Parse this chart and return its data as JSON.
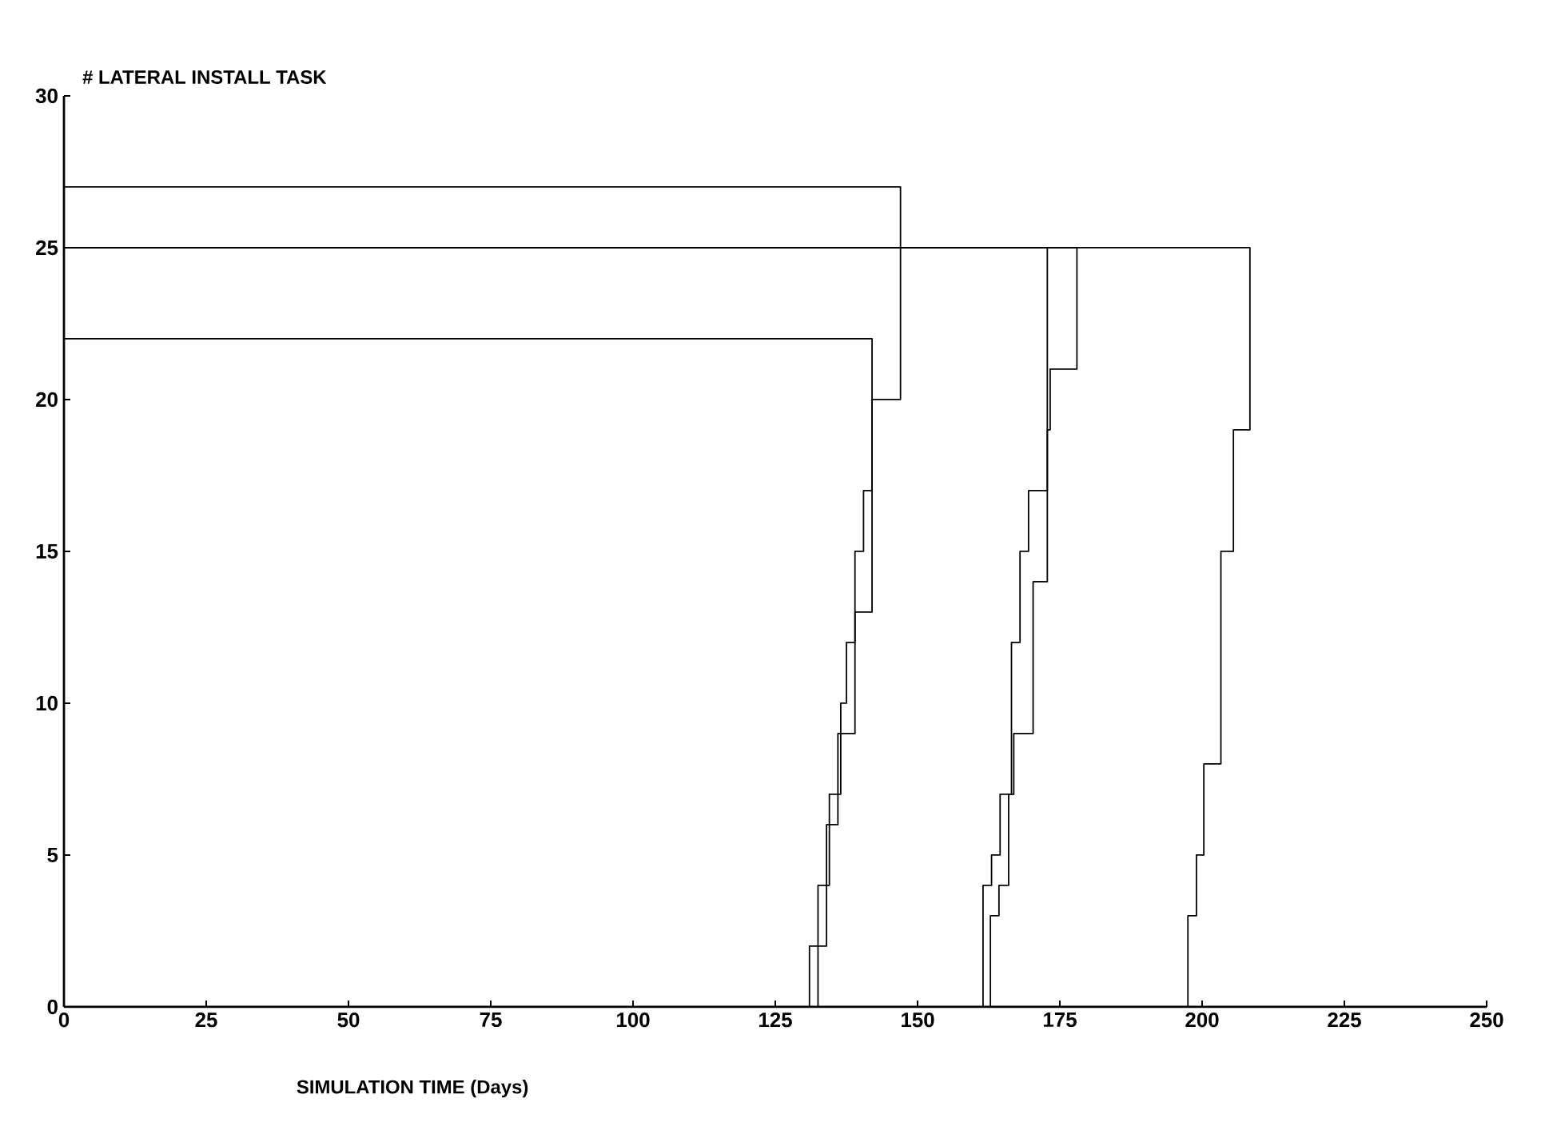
{
  "chart_data": {
    "type": "step",
    "ylabel": "# LATERAL INSTALL TASK",
    "xlabel": "SIMULATION TIME (Days)",
    "xlim": [
      0,
      250
    ],
    "ylim": [
      0,
      30
    ],
    "xticks": [
      0,
      25,
      50,
      75,
      100,
      125,
      150,
      175,
      200,
      225,
      250
    ],
    "yticks": [
      0,
      5,
      10,
      15,
      20,
      25,
      30
    ],
    "series": [
      {
        "color": "#000000",
        "x": [
          0,
          131,
          134,
          136,
          139,
          140.5,
          142,
          0
        ],
        "values": [
          0,
          2,
          6,
          9,
          15,
          17,
          22,
          22
        ]
      },
      {
        "color": "#000000",
        "x": [
          0,
          132.5,
          134.5,
          136.5,
          137.5,
          139,
          142,
          147,
          0
        ],
        "values": [
          0,
          4,
          7,
          10,
          12,
          13,
          20,
          27,
          27
        ]
      },
      {
        "color": "#000000",
        "x": [
          0,
          161.5,
          163,
          164.5,
          166.5,
          168,
          169.5,
          172.8,
          0
        ],
        "values": [
          0,
          4,
          5,
          7,
          12,
          15,
          17,
          25,
          25
        ]
      },
      {
        "color": "#000000",
        "x": [
          0,
          162.8,
          164.3,
          166,
          166.9,
          170.3,
          172.8,
          173.3,
          178,
          0
        ],
        "values": [
          0,
          3,
          4,
          7,
          9,
          14,
          19,
          21,
          25,
          25
        ]
      },
      {
        "color": "#000000",
        "x": [
          0,
          197.5,
          199,
          200.3,
          203.3,
          205.5,
          208.4,
          0
        ],
        "values": [
          0,
          3,
          5,
          8,
          15,
          19,
          25,
          25
        ]
      }
    ]
  }
}
